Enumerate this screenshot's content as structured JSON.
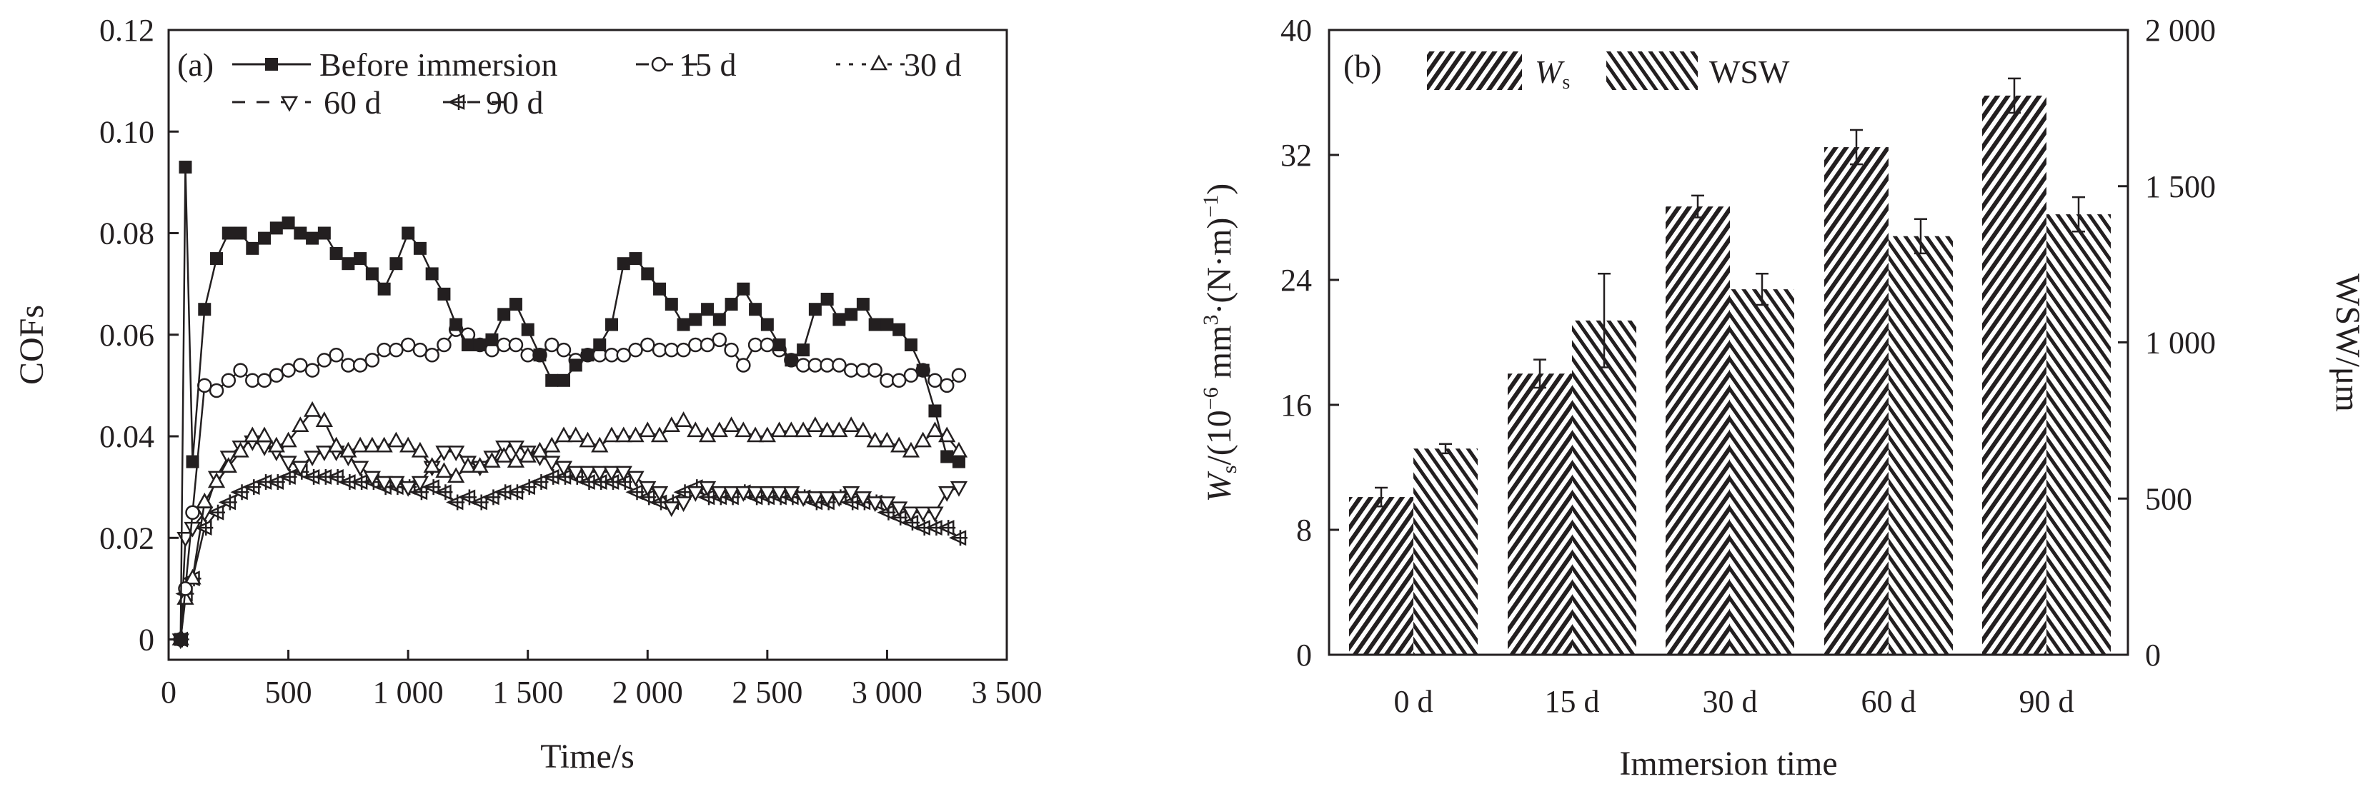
{
  "chart_data": [
    {
      "type": "line",
      "panel_label": "(a)",
      "xlabel": "Time/s",
      "ylabel": "COFs",
      "xlim": [
        0,
        3500
      ],
      "ylim": [
        -0.004,
        0.12
      ],
      "xticks": [
        0,
        500,
        1000,
        1500,
        2000,
        2500,
        3000,
        3500
      ],
      "xtick_labels": [
        "0",
        "500",
        "1 000",
        "1 500",
        "2 000",
        "2 500",
        "3 000",
        "3 500"
      ],
      "yticks": [
        0,
        0.02,
        0.04,
        0.06,
        0.08,
        0.1,
        0.12
      ],
      "ytick_labels": [
        "0",
        "0.02",
        "0.04",
        "0.06",
        "0.08",
        "0.10",
        "0.12"
      ],
      "legend_placement": "top-left",
      "x": [
        50,
        70,
        100,
        150,
        200,
        250,
        300,
        350,
        400,
        450,
        500,
        550,
        600,
        650,
        700,
        750,
        800,
        850,
        900,
        950,
        1000,
        1050,
        1100,
        1150,
        1200,
        1250,
        1300,
        1350,
        1400,
        1450,
        1500,
        1550,
        1600,
        1650,
        1700,
        1750,
        1800,
        1850,
        1900,
        1950,
        2000,
        2050,
        2100,
        2150,
        2200,
        2250,
        2300,
        2350,
        2400,
        2450,
        2500,
        2550,
        2600,
        2650,
        2700,
        2750,
        2800,
        2850,
        2900,
        2950,
        3000,
        3050,
        3100,
        3150,
        3200,
        3250,
        3300
      ],
      "series": [
        {
          "name": "Before immersion",
          "marker": "filled-square",
          "values": [
            0,
            0.093,
            0.035,
            0.065,
            0.075,
            0.08,
            0.08,
            0.077,
            0.079,
            0.081,
            0.082,
            0.08,
            0.079,
            0.08,
            0.076,
            0.074,
            0.075,
            0.072,
            0.069,
            0.074,
            0.08,
            0.077,
            0.072,
            0.068,
            0.062,
            0.058,
            0.058,
            0.059,
            0.064,
            0.066,
            0.061,
            0.056,
            0.051,
            0.051,
            0.054,
            0.056,
            0.058,
            0.062,
            0.074,
            0.075,
            0.072,
            0.069,
            0.066,
            0.062,
            0.063,
            0.065,
            0.063,
            0.066,
            0.069,
            0.065,
            0.062,
            0.058,
            0.055,
            0.057,
            0.065,
            0.067,
            0.063,
            0.064,
            0.066,
            0.062,
            0.062,
            0.061,
            0.058,
            0.053,
            0.045,
            0.036,
            0.035
          ]
        },
        {
          "name": "15 d",
          "marker": "open-circle",
          "values": [
            0,
            0.01,
            0.025,
            0.05,
            0.049,
            0.051,
            0.053,
            0.051,
            0.051,
            0.052,
            0.053,
            0.054,
            0.053,
            0.055,
            0.056,
            0.054,
            0.054,
            0.055,
            0.057,
            0.057,
            0.058,
            0.057,
            0.056,
            0.058,
            0.061,
            0.06,
            0.058,
            0.057,
            0.058,
            0.058,
            0.056,
            0.056,
            0.058,
            0.057,
            0.055,
            0.056,
            0.056,
            0.056,
            0.056,
            0.057,
            0.058,
            0.057,
            0.057,
            0.057,
            0.058,
            0.058,
            0.059,
            0.057,
            0.054,
            0.058,
            0.058,
            0.057,
            0.055,
            0.054,
            0.054,
            0.054,
            0.054,
            0.053,
            0.053,
            0.053,
            0.051,
            0.051,
            0.052,
            0.053,
            0.051,
            0.05,
            0.052
          ]
        },
        {
          "name": "30 d",
          "marker": "open-triangle-up",
          "values": [
            0,
            0.008,
            0.012,
            0.027,
            0.031,
            0.034,
            0.037,
            0.04,
            0.04,
            0.038,
            0.039,
            0.042,
            0.045,
            0.043,
            0.038,
            0.037,
            0.038,
            0.038,
            0.038,
            0.039,
            0.038,
            0.037,
            0.034,
            0.033,
            0.032,
            0.034,
            0.034,
            0.035,
            0.036,
            0.035,
            0.036,
            0.037,
            0.038,
            0.04,
            0.04,
            0.039,
            0.038,
            0.04,
            0.04,
            0.04,
            0.041,
            0.04,
            0.042,
            0.043,
            0.041,
            0.04,
            0.041,
            0.042,
            0.041,
            0.04,
            0.04,
            0.041,
            0.041,
            0.041,
            0.042,
            0.041,
            0.041,
            0.042,
            0.041,
            0.039,
            0.039,
            0.038,
            0.037,
            0.039,
            0.041,
            0.04,
            0.037
          ]
        },
        {
          "name": "60 d",
          "marker": "open-triangle-down",
          "values": [
            0,
            0.02,
            0.022,
            0.025,
            0.032,
            0.036,
            0.038,
            0.039,
            0.038,
            0.037,
            0.035,
            0.034,
            0.036,
            0.037,
            0.037,
            0.036,
            0.034,
            0.032,
            0.031,
            0.031,
            0.03,
            0.031,
            0.034,
            0.037,
            0.037,
            0.035,
            0.034,
            0.036,
            0.038,
            0.038,
            0.037,
            0.036,
            0.035,
            0.034,
            0.033,
            0.033,
            0.033,
            0.033,
            0.033,
            0.032,
            0.03,
            0.029,
            0.026,
            0.027,
            0.029,
            0.03,
            0.029,
            0.029,
            0.029,
            0.029,
            0.029,
            0.029,
            0.029,
            0.028,
            0.028,
            0.028,
            0.028,
            0.029,
            0.028,
            0.027,
            0.027,
            0.026,
            0.025,
            0.025,
            0.025,
            0.029,
            0.03
          ]
        },
        {
          "name": "90 d",
          "marker": "crossed-triangle-left",
          "values": [
            0,
            0.009,
            0.012,
            0.022,
            0.025,
            0.027,
            0.029,
            0.03,
            0.031,
            0.031,
            0.032,
            0.033,
            0.032,
            0.032,
            0.032,
            0.031,
            0.031,
            0.031,
            0.03,
            0.03,
            0.03,
            0.029,
            0.03,
            0.029,
            0.027,
            0.028,
            0.027,
            0.028,
            0.029,
            0.029,
            0.03,
            0.031,
            0.032,
            0.032,
            0.032,
            0.031,
            0.031,
            0.031,
            0.031,
            0.029,
            0.028,
            0.027,
            0.027,
            0.029,
            0.03,
            0.028,
            0.028,
            0.028,
            0.029,
            0.028,
            0.028,
            0.028,
            0.028,
            0.028,
            0.027,
            0.027,
            0.028,
            0.027,
            0.027,
            0.027,
            0.025,
            0.024,
            0.023,
            0.022,
            0.022,
            0.022,
            0.02
          ]
        }
      ]
    },
    {
      "type": "bar",
      "panel_label": "(b)",
      "xlabel": "Immersion time",
      "ylabel_main": "W",
      "ylabel_sub": "s",
      "ylabel_rest": "/(10",
      "ylabel_exp1": "−6",
      "ylabel_mid": " mm",
      "ylabel_exp2": "3",
      "ylabel_mid2": "·(N·m)",
      "ylabel_exp3": "−1",
      "ylabel_end": ")",
      "ylabel_right": "WSW/μm",
      "categories": [
        "0 d",
        "15 d",
        "30 d",
        "60 d",
        "90 d"
      ],
      "ylim_left": [
        0,
        40
      ],
      "ylim_right": [
        0,
        2000
      ],
      "yticks_left": [
        0,
        8,
        16,
        24,
        32,
        40
      ],
      "ytick_labels_left": [
        "0",
        "8",
        "16",
        "24",
        "32",
        "40"
      ],
      "yticks_right": [
        0,
        500,
        1000,
        1500,
        2000
      ],
      "ytick_labels_right": [
        "0",
        "500",
        "1 000",
        "1 500",
        "2 000"
      ],
      "legend_placement": "top-left",
      "series": [
        {
          "name": "W",
          "name_sub": "s",
          "axis": "left",
          "hatch": "forward",
          "values": [
            10.1,
            18.0,
            28.7,
            32.5,
            35.8
          ],
          "errors": [
            0.6,
            0.9,
            0.7,
            1.1,
            1.1
          ]
        },
        {
          "name": "WSW",
          "axis": "right",
          "hatch": "backward",
          "values": [
            660,
            1070,
            1170,
            1340,
            1410
          ],
          "errors": [
            15,
            150,
            50,
            55,
            55
          ]
        }
      ]
    }
  ]
}
